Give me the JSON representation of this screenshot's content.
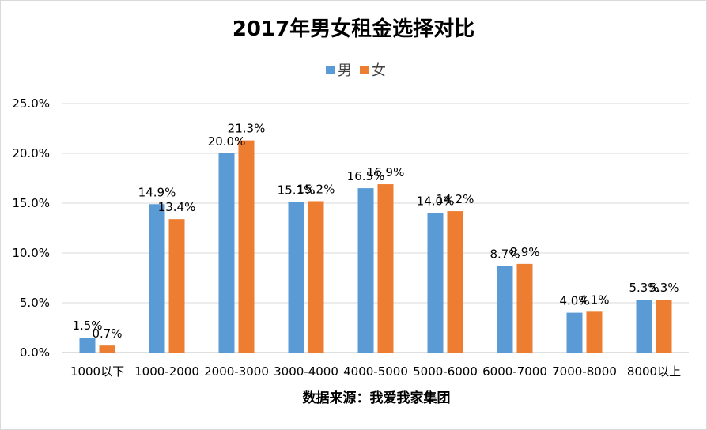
{
  "chart_data": {
    "type": "bar",
    "title": "2017年男女租金选择对比",
    "xlabel": "数据来源：我爱我家集团",
    "ylabel": "",
    "categories": [
      "1000以下",
      "1000-2000",
      "2000-3000",
      "3000-4000",
      "4000-5000",
      "5000-6000",
      "6000-7000",
      "7000-8000",
      "8000以上"
    ],
    "series": [
      {
        "name": "男",
        "color": "#5b9bd5",
        "values": [
          1.5,
          14.9,
          20.0,
          15.1,
          16.5,
          14.0,
          8.7,
          4.0,
          5.3
        ]
      },
      {
        "name": "女",
        "color": "#ed7d31",
        "values": [
          0.7,
          13.4,
          21.3,
          15.2,
          16.9,
          14.2,
          8.9,
          4.1,
          5.3
        ]
      }
    ],
    "ylim": [
      0,
      25
    ],
    "yticks": [
      "0.0%",
      "5.0%",
      "10.0%",
      "15.0%",
      "20.0%",
      "25.0%"
    ],
    "value_suffix": "%",
    "grid": true,
    "legend": "top-center"
  }
}
